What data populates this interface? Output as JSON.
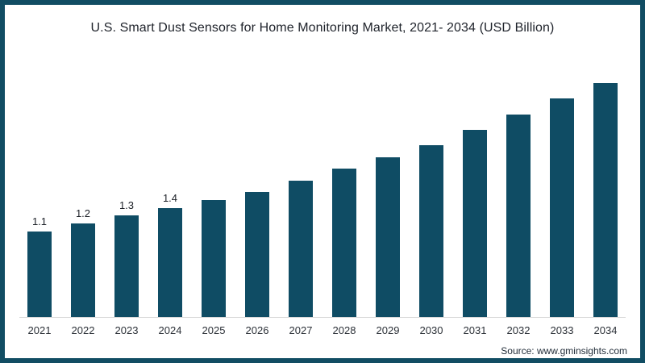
{
  "page": {
    "border_color": "#114d63",
    "background_color": "#ffffff"
  },
  "header": {
    "title": "U.S. Smart Dust Sensors for Home Monitoring Market, 2021- 2034 (USD Billion)"
  },
  "footer": {
    "source": "Source: www.gminsights.com"
  },
  "chart_data": {
    "type": "bar",
    "title": "U.S. Smart Dust Sensors for Home Monitoring Market, 2021- 2034 (USD Billion)",
    "categories": [
      "2021",
      "2022",
      "2023",
      "2024",
      "2025",
      "2026",
      "2027",
      "2028",
      "2029",
      "2030",
      "2031",
      "2032",
      "2033",
      "2034"
    ],
    "values": [
      1.1,
      1.2,
      1.3,
      1.4,
      1.5,
      1.6,
      1.75,
      1.9,
      2.05,
      2.2,
      2.4,
      2.6,
      2.8,
      3.0
    ],
    "data_labels": [
      "1.1",
      "1.2",
      "1.3",
      "1.4",
      "",
      "",
      "",
      "",
      "",
      "",
      "",
      "",
      "",
      ""
    ],
    "bar_color": "#0f4c64",
    "xlabel": "",
    "ylabel": "",
    "ylim": [
      0,
      3.05
    ],
    "grid": false,
    "legend": false,
    "y_axis_visible": false,
    "axis_line_color": "#d9d9d9"
  }
}
